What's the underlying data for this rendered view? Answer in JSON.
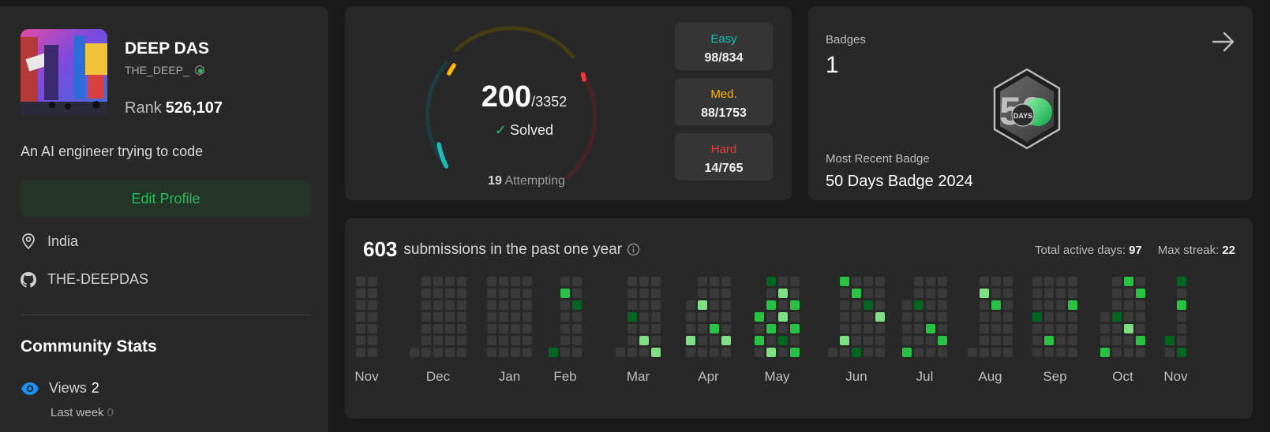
{
  "profile": {
    "name": "DEEP DAS",
    "username": "THE_DEEP_",
    "rank_label": "Rank",
    "rank_value": "526,107",
    "bio": "An AI engineer trying to code",
    "edit_label": "Edit Profile",
    "location": "India",
    "github": "THE-DEEPDAS",
    "community_title": "Community Stats",
    "views_label": "Views",
    "views_value": "2",
    "lastweek_label": "Last week",
    "lastweek_value": "0",
    "icons": [
      "location-pin-icon",
      "github-icon",
      "eye-icon",
      "verified-icon"
    ]
  },
  "solved": {
    "count": "200",
    "total": "/3352",
    "solved_label": "Solved",
    "attempting_count": "19",
    "attempting_label": "Attempting",
    "easy_solved": 98,
    "medium_solved": 88,
    "hard_solved": 14,
    "difficulties": [
      {
        "label": "Easy",
        "value": "98/834",
        "color": "#1cbaba"
      },
      {
        "label": "Med.",
        "value": "88/1753",
        "color": "#ffb700"
      },
      {
        "label": "Hard",
        "value": "14/765",
        "color": "#f63737"
      }
    ]
  },
  "badges": {
    "label": "Badges",
    "count": "1",
    "recent_label": "Most Recent Badge",
    "recent_name": "50 Days Badge 2024",
    "badge_number": "50",
    "badge_text": "DAYS"
  },
  "calendar": {
    "count": "603",
    "text": "submissions in the past one year",
    "active_label": "Total active days:",
    "active_value": "97",
    "streak_label": "Max streak:",
    "streak_value": "22",
    "months": [
      "Nov",
      "Dec",
      "Jan",
      "Feb",
      "Mar",
      "Apr",
      "May",
      "Jun",
      "Jul",
      "Aug",
      "Sep",
      "Oct",
      "Nov"
    ],
    "colors": {
      "empty": "#3a3a3a",
      "l1": "#016620",
      "l2": "#28c244",
      "l3": "#7ee083",
      "bg": "#282828"
    },
    "month_cols": [
      {
        "first_row": 0,
        "last_rows": [
          7,
          7
        ]
      },
      {
        "first_row": 6,
        "last_rows": [
          7,
          7,
          7,
          7,
          7
        ]
      },
      {
        "first_row": 0,
        "last_rows": [
          7,
          7,
          7,
          7
        ]
      },
      {
        "first_row": 6,
        "last_rows": [
          7,
          7,
          7
        ]
      },
      {
        "first_row": 6,
        "last_rows": [
          7,
          7,
          7,
          7
        ]
      },
      {
        "first_row": 2,
        "last_rows": [
          7,
          7,
          7,
          7
        ]
      },
      {
        "first_row": 3,
        "last_rows": [
          7,
          7,
          7,
          7
        ]
      },
      {
        "first_row": 6,
        "last_rows": [
          7,
          7,
          7,
          7,
          7
        ]
      },
      {
        "first_row": 2,
        "last_rows": [
          7,
          7,
          7,
          7
        ]
      },
      {
        "first_row": 6,
        "last_rows": [
          7,
          7,
          7,
          7
        ]
      },
      {
        "first_row": 0,
        "last_rows": [
          7,
          7,
          7,
          7
        ]
      },
      {
        "first_row": 3,
        "last_rows": [
          7,
          7,
          7,
          7
        ]
      },
      {
        "first_row": 5,
        "last_rows": [
          7,
          7
        ]
      }
    ],
    "active_cells": [
      [
        3,
        4,
        1
      ],
      [
        3,
        1,
        2
      ],
      [
        3,
        2,
        1
      ],
      [
        3,
        6,
        1
      ],
      [
        4,
        0,
        3
      ],
      [
        4,
        3,
        1
      ],
      [
        4,
        5,
        3
      ],
      [
        4,
        6,
        3
      ],
      [
        5,
        1,
        2
      ],
      [
        5,
        2,
        3
      ],
      [
        5,
        4,
        2
      ],
      [
        5,
        5,
        3
      ],
      [
        5,
        5,
        3
      ],
      [
        6,
        0,
        1
      ],
      [
        6,
        1,
        3
      ],
      [
        6,
        2,
        2
      ],
      [
        6,
        3,
        2
      ],
      [
        6,
        4,
        2
      ],
      [
        6,
        5,
        1
      ],
      [
        6,
        6,
        2
      ],
      [
        6,
        0,
        2
      ],
      [
        6,
        2,
        2
      ],
      [
        6,
        3,
        3
      ],
      [
        6,
        4,
        2
      ],
      [
        6,
        5,
        2
      ],
      [
        6,
        6,
        3
      ],
      [
        7,
        0,
        2
      ],
      [
        7,
        1,
        2
      ],
      [
        7,
        2,
        1
      ],
      [
        7,
        3,
        3
      ],
      [
        7,
        4,
        1
      ],
      [
        7,
        5,
        3
      ],
      [
        7,
        6,
        1
      ],
      [
        8,
        2,
        1
      ],
      [
        8,
        4,
        2
      ],
      [
        8,
        5,
        2
      ],
      [
        8,
        6,
        2
      ],
      [
        9,
        1,
        3
      ],
      [
        9,
        2,
        2
      ],
      [
        10,
        2,
        2
      ],
      [
        10,
        3,
        1
      ],
      [
        10,
        5,
        2
      ],
      [
        11,
        0,
        2
      ],
      [
        11,
        1,
        2
      ],
      [
        11,
        2,
        3
      ],
      [
        11,
        3,
        1
      ],
      [
        11,
        4,
        3
      ],
      [
        11,
        5,
        2
      ],
      [
        11,
        6,
        2
      ],
      [
        12,
        0,
        1
      ],
      [
        12,
        1,
        2
      ],
      [
        12,
        2,
        2
      ],
      [
        12,
        5,
        1
      ],
      [
        12,
        6,
        1
      ]
    ]
  }
}
